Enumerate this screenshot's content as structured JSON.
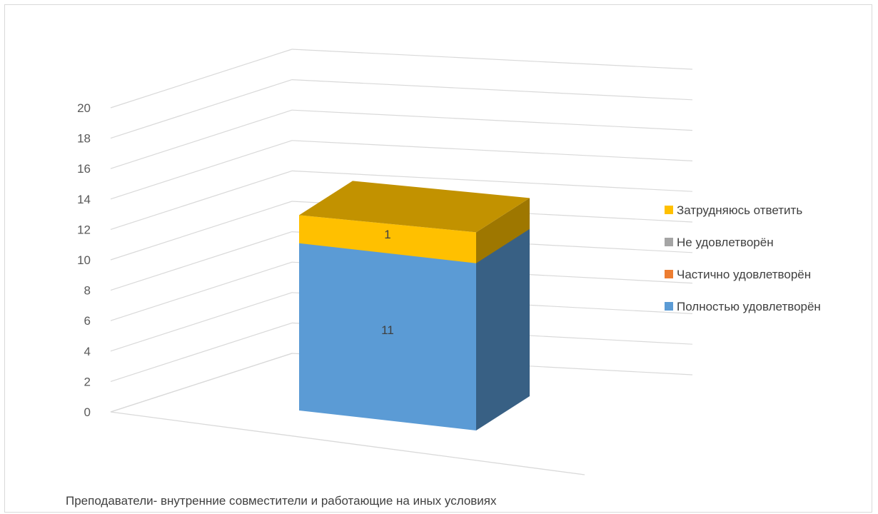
{
  "chart_data": {
    "type": "bar",
    "style": "3d-stacked-column",
    "categories": [
      "Преподаватели-  внутренние совместители и работающие на иных условиях"
    ],
    "series": [
      {
        "name": "Полностью удовлетворён",
        "values": [
          11
        ],
        "color": "#5b9bd5"
      },
      {
        "name": "Частично удовлетворён",
        "values": [
          0
        ],
        "color": "#ed7d31"
      },
      {
        "name": "Не удовлетворён",
        "values": [
          0
        ],
        "color": "#a5a5a5"
      },
      {
        "name": "Затрудняюсь ответить",
        "values": [
          1
        ],
        "color": "#ffc000"
      }
    ],
    "ylim": [
      0,
      20
    ],
    "yticks": [
      "0",
      "2",
      "4",
      "6",
      "8",
      "10",
      "12",
      "14",
      "16",
      "18",
      "20"
    ],
    "data_labels": [
      "11",
      "1"
    ],
    "grid": true,
    "legend": "right"
  }
}
